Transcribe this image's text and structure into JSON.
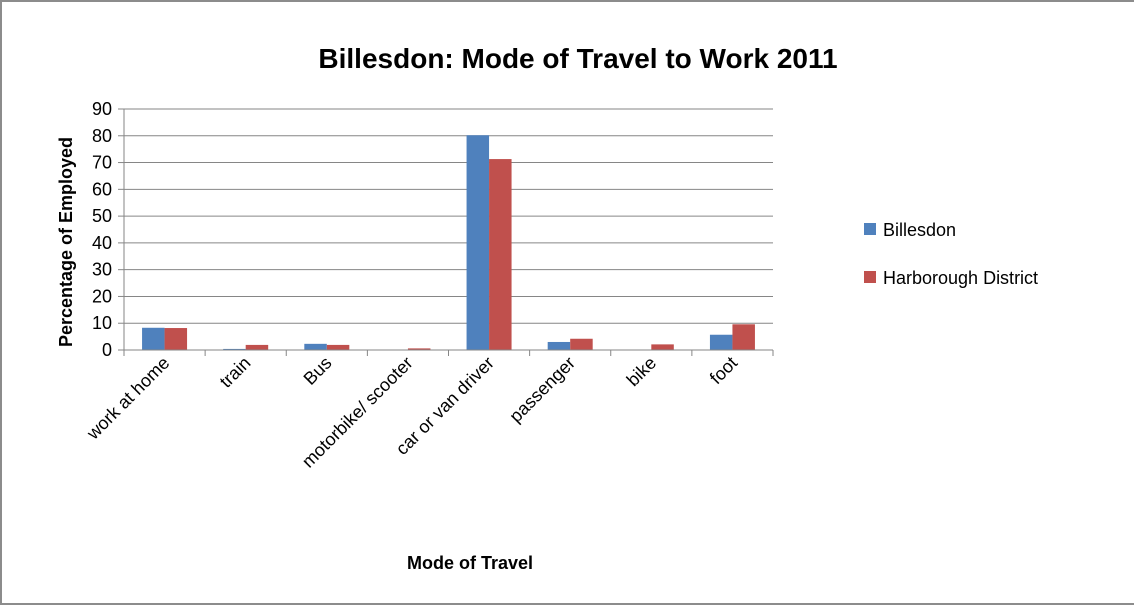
{
  "chart_data": {
    "type": "bar",
    "title": "Billesdon: Mode of Travel to Work 2011",
    "xlabel": "Mode of Travel",
    "ylabel": "Percentage of Employed",
    "categories": [
      "work at home",
      "train",
      "Bus",
      "motorbike/ scooter",
      "car or van driver",
      "passenger",
      "bike",
      "foot"
    ],
    "series": [
      {
        "name": "Billesdon",
        "color": "#4f81bd",
        "values": [
          8.3,
          0.4,
          2.3,
          0.0,
          80.2,
          3.0,
          0.0,
          5.7
        ]
      },
      {
        "name": "Harborough District",
        "color": "#c0504d",
        "values": [
          8.2,
          1.9,
          1.9,
          0.6,
          71.3,
          4.2,
          2.1,
          9.6
        ]
      }
    ],
    "ylim": [
      0,
      90
    ],
    "yticks": [
      0,
      10,
      20,
      30,
      40,
      50,
      60,
      70,
      80,
      90
    ],
    "grid": true,
    "legend_position": "right",
    "gridline_color": "#868686",
    "axis_color": "#868686"
  }
}
